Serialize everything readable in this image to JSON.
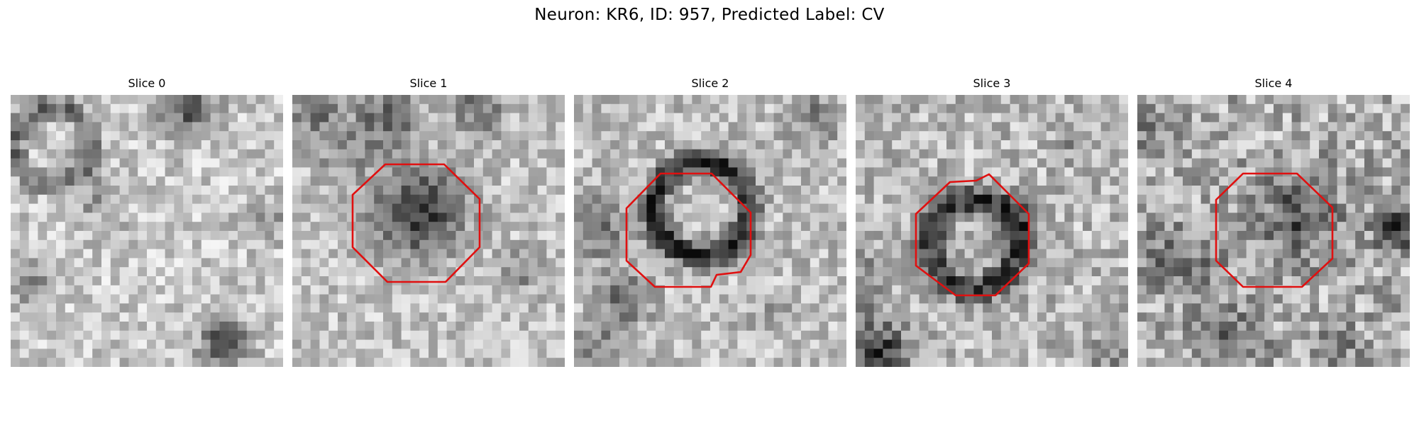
{
  "figure": {
    "suptitle": "Neuron: KR6, ID: 957, Predicted Label: CV",
    "contour_color": "#e01010",
    "colormap": "gray",
    "panels": [
      {
        "title": "Slice 0",
        "image": "grayscale-em-patch",
        "has_contour": false
      },
      {
        "title": "Slice 1",
        "image": "grayscale-em-patch",
        "has_contour": true
      },
      {
        "title": "Slice 2",
        "image": "grayscale-em-patch",
        "has_contour": true
      },
      {
        "title": "Slice 3",
        "image": "grayscale-em-patch",
        "has_contour": true
      },
      {
        "title": "Slice 4",
        "image": "grayscale-em-patch",
        "has_contour": true
      }
    ]
  }
}
